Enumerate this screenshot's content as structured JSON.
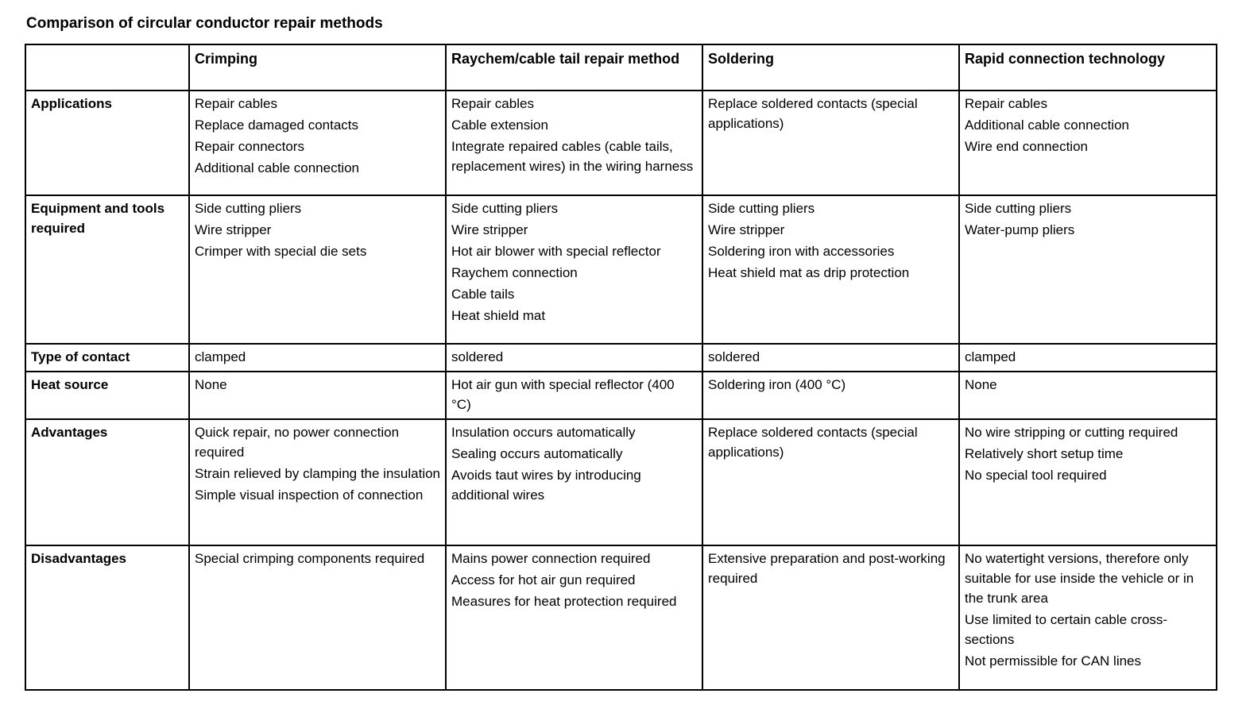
{
  "title": "Comparison of circular conductor repair methods",
  "table": {
    "header": {
      "corner": "",
      "methods": [
        "Crimping",
        "Raychem/cable tail repair method",
        "Soldering",
        "Rapid connection technology"
      ]
    },
    "rows": [
      {
        "label": "Applications",
        "cells": [
          [
            "Repair cables",
            "Replace damaged contacts",
            "Repair connectors",
            "Additional cable connection"
          ],
          [
            "Repair cables",
            "Cable extension",
            "Integrate repaired cables (cable tails, replacement wires) in the wiring harness"
          ],
          [
            "Replace soldered contacts (special applications)"
          ],
          [
            "Repair cables",
            "Additional cable connection",
            "Wire end connection"
          ]
        ]
      },
      {
        "label": "Equipment and tools required",
        "cells": [
          [
            "Side cutting pliers",
            "Wire stripper",
            "Crimper with special die sets"
          ],
          [
            "Side cutting pliers",
            "Wire stripper",
            "Hot air blower with special reflector",
            "Raychem connection",
            "Cable tails",
            "Heat shield mat"
          ],
          [
            "Side cutting pliers",
            "Wire stripper",
            "Soldering iron with accessories",
            "Heat shield mat as drip protection"
          ],
          [
            "Side cutting pliers",
            "Water-pump pliers"
          ]
        ]
      },
      {
        "label": "Type of contact",
        "cells": [
          [
            "clamped"
          ],
          [
            "soldered"
          ],
          [
            "soldered"
          ],
          [
            "clamped"
          ]
        ]
      },
      {
        "label": "Heat source",
        "cells": [
          [
            "None"
          ],
          [
            "Hot air gun with special reflector (400 °C)"
          ],
          [
            "Soldering iron (400 °C)"
          ],
          [
            "None"
          ]
        ]
      },
      {
        "label": "Advantages",
        "cells": [
          [
            "Quick repair, no power connection required",
            "Strain relieved by clamping the insulation",
            "Simple visual inspection of connection"
          ],
          [
            "Insulation occurs automatically",
            "Sealing occurs automatically",
            "Avoids taut wires by introducing additional wires"
          ],
          [
            "Replace soldered contacts (special applications)"
          ],
          [
            "No wire stripping or cutting required",
            "Relatively short setup time",
            "No special tool required"
          ]
        ]
      },
      {
        "label": "Disadvantages",
        "cells": [
          [
            "Special crimping components required"
          ],
          [
            "Mains power connection required",
            "Access for hot air gun required",
            "Measures for heat protection required"
          ],
          [
            "Extensive preparation and post-working required"
          ],
          [
            "No watertight versions, therefore only suitable for use inside the vehicle or in the trunk area",
            "Use limited to certain cable cross-sections",
            "Not permissible for CAN lines"
          ]
        ]
      }
    ]
  }
}
